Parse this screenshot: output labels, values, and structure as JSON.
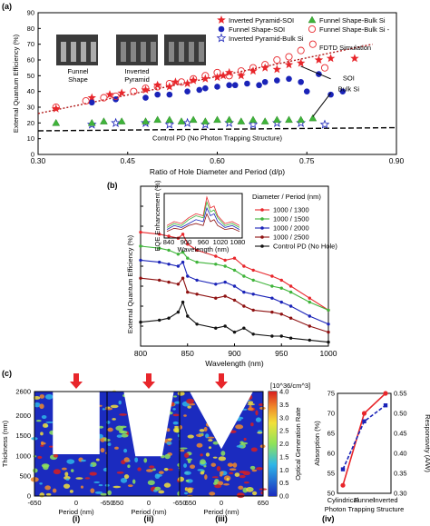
{
  "panel_labels": {
    "a": "(a)",
    "b": "(b)",
    "c": "(c)"
  },
  "sub_labels": [
    "(i)",
    "(ii)",
    "(iii)",
    "(iv)"
  ],
  "inset_labels": {
    "funnel": "Funnel\nShape",
    "inverted": "Inverted\nPyramid"
  },
  "colors": {
    "red": "#e8262b",
    "blue": "#1a23b8",
    "green": "#3fb43a",
    "darkred": "#9a0e0e"
  },
  "chart_data": [
    {
      "type": "scatter",
      "ylabel": "External Quantum Efficiency (%)",
      "xlabel": "Ratio of Hole Diameter and Period (d/p)",
      "xlim": [
        0.3,
        0.9
      ],
      "ylim": [
        0,
        90
      ],
      "xticks": [
        "0.30",
        "0.45",
        "0.60",
        "0.75",
        "0.90"
      ],
      "yticks": [
        "0",
        "10",
        "20",
        "30",
        "40",
        "50",
        "60",
        "70",
        "80",
        "90"
      ],
      "series": [
        {
          "name": "Inverted Pyramid-SOI",
          "marker": "star-filled",
          "color": "#e8262b",
          "x": [
            0.33,
            0.39,
            0.42,
            0.44,
            0.48,
            0.5,
            0.52,
            0.53,
            0.55,
            0.56,
            0.58,
            0.6,
            0.61,
            0.62,
            0.64,
            0.66,
            0.68,
            0.7,
            0.72,
            0.74,
            0.77,
            0.79,
            0.83
          ],
          "y": [
            29,
            36,
            38,
            39,
            41,
            44,
            43,
            46,
            45,
            47,
            48,
            49,
            50,
            52,
            50,
            53,
            55,
            54,
            57,
            58,
            60,
            61,
            61
          ]
        },
        {
          "name": "Funnel Shape-SOI",
          "marker": "circle-filled",
          "color": "#1a23b8",
          "x": [
            0.39,
            0.43,
            0.48,
            0.5,
            0.52,
            0.55,
            0.57,
            0.58,
            0.6,
            0.62,
            0.63,
            0.65,
            0.67,
            0.68,
            0.7,
            0.72,
            0.74,
            0.75,
            0.77,
            0.79,
            0.81
          ],
          "y": [
            33,
            35,
            36,
            38,
            38,
            40,
            41,
            42,
            43,
            44,
            44,
            45,
            44,
            46,
            47,
            48,
            46,
            40,
            51,
            38,
            40
          ]
        },
        {
          "name": "Inverted Pyramid-Bulk Si",
          "marker": "star-open",
          "color": "#1a23b8",
          "x": [
            0.39,
            0.43,
            0.48,
            0.52,
            0.55,
            0.58,
            0.62,
            0.66,
            0.7,
            0.74,
            0.78
          ],
          "y": [
            19,
            20,
            20,
            19,
            20,
            19,
            20,
            19,
            20,
            20,
            19
          ]
        },
        {
          "name": "Funnel Shape-Bulk Si",
          "marker": "triangle-filled",
          "color": "#3fb43a",
          "x": [
            0.33,
            0.39,
            0.41,
            0.44,
            0.48,
            0.5,
            0.52,
            0.54,
            0.56,
            0.58,
            0.6,
            0.62,
            0.64,
            0.66,
            0.68,
            0.7,
            0.72,
            0.74,
            0.76
          ],
          "y": [
            20,
            20,
            21,
            21,
            21,
            22,
            22,
            21,
            22,
            21,
            22,
            22,
            21,
            22,
            21,
            22,
            22,
            22,
            23
          ]
        },
        {
          "name": "FDTD Simulation",
          "marker": "circle-open",
          "color": "#e8262b",
          "x": [
            0.33,
            0.38,
            0.41,
            0.43,
            0.46,
            0.48,
            0.5,
            0.52,
            0.54,
            0.56,
            0.58,
            0.6,
            0.62,
            0.64,
            0.66,
            0.68,
            0.7,
            0.72,
            0.74,
            0.76,
            0.78
          ],
          "y": [
            30,
            34,
            36,
            37,
            40,
            42,
            43,
            45,
            46,
            48,
            50,
            52,
            50,
            53,
            55,
            57,
            60,
            62,
            66,
            70,
            55
          ]
        }
      ],
      "legend": [
        "Inverted Pyramid-SOI",
        "Funnel Shape-SOI",
        "Inverted Pyramid-Bulk Si",
        "Funnel Shape-Bulk Si",
        "FDTD Simulation"
      ],
      "legend_fdtd_prefix": "Funnel Shape-Bulk Si",
      "trend_soi": {
        "x": [
          0.3,
          0.86
        ],
        "y": [
          26,
          70
        ]
      },
      "trend_bulk": {
        "x": [
          0.3,
          0.9
        ],
        "y": [
          15,
          17
        ]
      },
      "annotations": {
        "control": "Control PD (No Photon Trapping Structure)",
        "soi": "SOI",
        "bulk": "Bulk Si"
      }
    },
    {
      "type": "line",
      "ylabel": "External Quantum Efficiency (%)",
      "xlabel": "Wavelength (nm)",
      "xlim": [
        800,
        1000
      ],
      "ylim": [
        0,
        80
      ],
      "xticks": [
        "800",
        "850",
        "900",
        "950",
        "1000"
      ],
      "legend_title": "Diameter / Period (nm)",
      "x": [
        800,
        820,
        830,
        840,
        845,
        850,
        860,
        880,
        890,
        900,
        910,
        920,
        940,
        950,
        960,
        980,
        1000
      ],
      "series": [
        {
          "name": "1000 / 1300",
          "color": "#e8262b",
          "values": [
            57,
            56,
            55,
            54,
            56,
            51,
            48,
            45,
            43,
            44,
            40,
            38,
            35,
            33,
            30,
            24,
            18
          ]
        },
        {
          "name": "1000 / 1500",
          "color": "#3fb43a",
          "values": [
            50,
            49,
            48,
            46,
            47,
            44,
            42,
            41,
            40,
            38,
            35,
            33,
            30,
            29,
            27,
            22,
            18
          ]
        },
        {
          "name": "1000 / 2000",
          "color": "#1a23b8",
          "values": [
            43,
            42,
            41,
            40,
            42,
            35,
            33,
            31,
            32,
            30,
            27,
            26,
            24,
            22,
            20,
            15,
            11
          ]
        },
        {
          "name": "1000 / 2500",
          "color": "#8e1111",
          "values": [
            34,
            33,
            32,
            31,
            34,
            27,
            26,
            24,
            25,
            23,
            20,
            18,
            17,
            16,
            14,
            10,
            7
          ]
        },
        {
          "name": "Control PD (No Hole)",
          "color": "#111111",
          "values": [
            12,
            13,
            14,
            17,
            22,
            15,
            11,
            9,
            10,
            7,
            9,
            6,
            5,
            5,
            4,
            3,
            2
          ]
        }
      ],
      "inset": {
        "ylabel": "EQE Enhancement (%)",
        "xlabel": "Wavelength (nm)",
        "xticks": [
          "840",
          "900",
          "960",
          "1020",
          "1080"
        ],
        "yticks": [
          "0",
          "400",
          "800",
          "1200"
        ]
      }
    },
    {
      "type": "heatmap",
      "ylabel": "Thickness (nm)",
      "xlabel": "Period (nm)",
      "xticks": [
        "-650",
        "0",
        "650"
      ],
      "yticks": [
        "0",
        "500",
        "1000",
        "1500",
        "2000",
        "2600"
      ],
      "colorbar": {
        "title": "[10^36/cm^3]",
        "label": "Optical Generation Rate",
        "ticks": [
          "0.0",
          "0.5",
          "1.0",
          "1.5",
          "2.0",
          "2.5",
          "3.0",
          "3.5",
          "4.0"
        ]
      },
      "maps": [
        "Cylindrical",
        "Funnel",
        "Inverted"
      ]
    },
    {
      "type": "line",
      "xlabel": "Photon Trapping Structure",
      "ylabel": "Absorption (%)",
      "ylabel_right": "Responsivity (A/W)",
      "categories": [
        "Cylindrical",
        "Funnel",
        "Inverted"
      ],
      "ylim": [
        50,
        75
      ],
      "yticks": [
        "50",
        "55",
        "60",
        "65",
        "70",
        "75"
      ],
      "ylim_right": [
        0.3,
        0.55
      ],
      "yticks_right": [
        "0.30",
        "0.35",
        "0.40",
        "0.45",
        "0.50",
        "0.55"
      ],
      "series": [
        {
          "name": "Absorption",
          "axis": "left",
          "color": "#e8262b",
          "values": [
            52,
            70,
            75
          ]
        },
        {
          "name": "Responsivity",
          "axis": "right",
          "color": "#1a23b8",
          "values": [
            0.36,
            0.48,
            0.52
          ]
        }
      ]
    }
  ]
}
